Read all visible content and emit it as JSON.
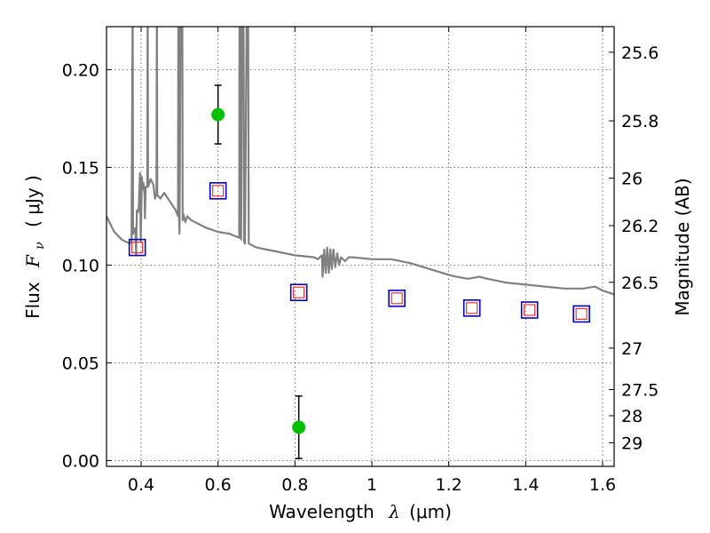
{
  "chart_data": {
    "type": "scatter",
    "title": "",
    "xlabel": "Wavelength  λ (μm)",
    "ylabel": "Flux  F_ν  ( μJy )",
    "ylabel_parts": {
      "prefix": "Flux",
      "symbol": "F",
      "subscript": "ν",
      "unit": "( μJy )"
    },
    "xlabel_parts": {
      "prefix": "Wavelength",
      "symbol": "λ",
      "unit": "(μm)"
    },
    "y2label": "Magnitude (AB)",
    "xlim": [
      0.31,
      1.63
    ],
    "ylim": [
      -0.003,
      0.222
    ],
    "grid": true,
    "x_ticks": [
      0.4,
      0.6,
      0.8,
      1.0,
      1.2,
      1.4,
      1.6
    ],
    "x_tick_labels": [
      "0.4",
      "0.6",
      "0.8",
      "1",
      "1.2",
      "1.4",
      "1.6"
    ],
    "y_ticks": [
      0.0,
      0.05,
      0.1,
      0.15,
      0.2
    ],
    "y_tick_labels": [
      "0.00",
      "0.05",
      "0.10",
      "0.15",
      "0.20"
    ],
    "y2_ticks": [
      {
        "flux": 0.2089,
        "label": "25.6"
      },
      {
        "flux": 0.1738,
        "label": "25.8"
      },
      {
        "flux": 0.1445,
        "label": "26"
      },
      {
        "flux": 0.1202,
        "label": "26.2"
      },
      {
        "flux": 0.0912,
        "label": "26.5"
      },
      {
        "flux": 0.0575,
        "label": "27"
      },
      {
        "flux": 0.0363,
        "label": "27.5"
      },
      {
        "flux": 0.0229,
        "label": "28"
      },
      {
        "flux": 0.0091,
        "label": "29"
      }
    ],
    "series": [
      {
        "name": "Observed photometry",
        "marker": "circle",
        "color": "#00c000",
        "points": [
          {
            "x": 0.6,
            "y": 0.177,
            "yerr": 0.015
          },
          {
            "x": 0.81,
            "y": 0.017,
            "yerr": 0.016
          }
        ]
      },
      {
        "name": "Model photometry (blue)",
        "marker": "square",
        "color": "#0000cc",
        "points": [
          {
            "x": 0.39,
            "y": 0.109
          },
          {
            "x": 0.6,
            "y": 0.138
          },
          {
            "x": 0.81,
            "y": 0.086
          },
          {
            "x": 1.065,
            "y": 0.083
          },
          {
            "x": 1.26,
            "y": 0.078
          },
          {
            "x": 1.41,
            "y": 0.077
          },
          {
            "x": 1.545,
            "y": 0.075
          }
        ]
      },
      {
        "name": "Model photometry (red)",
        "marker": "square",
        "color": "#ee2222",
        "points": [
          {
            "x": 0.39,
            "y": 0.109
          },
          {
            "x": 0.6,
            "y": 0.138
          },
          {
            "x": 0.81,
            "y": 0.086
          },
          {
            "x": 1.065,
            "y": 0.083
          },
          {
            "x": 1.26,
            "y": 0.078
          },
          {
            "x": 1.41,
            "y": 0.077
          },
          {
            "x": 1.545,
            "y": 0.075
          }
        ]
      },
      {
        "name": "Model spectrum",
        "type": "line",
        "color": "#808080",
        "points": [
          [
            0.31,
            0.125
          ],
          [
            0.33,
            0.117
          ],
          [
            0.35,
            0.113
          ],
          [
            0.37,
            0.111
          ],
          [
            0.375,
            0.112
          ],
          [
            0.378,
            0.24
          ],
          [
            0.379,
            0.116
          ],
          [
            0.385,
            0.119
          ],
          [
            0.387,
            0.105
          ],
          [
            0.389,
            0.128
          ],
          [
            0.392,
            0.127
          ],
          [
            0.394,
            0.13
          ],
          [
            0.397,
            0.147
          ],
          [
            0.399,
            0.112
          ],
          [
            0.402,
            0.145
          ],
          [
            0.404,
            0.139
          ],
          [
            0.406,
            0.142
          ],
          [
            0.409,
            0.136
          ],
          [
            0.41,
            0.124
          ],
          [
            0.412,
            0.14
          ],
          [
            0.416,
            0.14
          ],
          [
            0.417,
            0.24
          ],
          [
            0.418,
            0.14
          ],
          [
            0.425,
            0.144
          ],
          [
            0.432,
            0.141
          ],
          [
            0.436,
            0.134
          ],
          [
            0.44,
            0.136
          ],
          [
            0.441,
            0.24
          ],
          [
            0.442,
            0.136
          ],
          [
            0.45,
            0.134
          ],
          [
            0.46,
            0.137
          ],
          [
            0.47,
            0.134
          ],
          [
            0.48,
            0.131
          ],
          [
            0.49,
            0.128
          ],
          [
            0.496,
            0.125
          ],
          [
            0.497,
            0.24
          ],
          [
            0.498,
            0.24
          ],
          [
            0.499,
            0.121
          ],
          [
            0.5,
            0.116
          ],
          [
            0.503,
            0.24
          ],
          [
            0.505,
            0.24
          ],
          [
            0.507,
            0.24
          ],
          [
            0.508,
            0.123
          ],
          [
            0.51,
            0.126
          ],
          [
            0.515,
            0.122
          ],
          [
            0.52,
            0.125
          ],
          [
            0.53,
            0.123
          ],
          [
            0.55,
            0.121
          ],
          [
            0.57,
            0.119
          ],
          [
            0.6,
            0.117
          ],
          [
            0.63,
            0.116
          ],
          [
            0.655,
            0.114
          ],
          [
            0.656,
            0.24
          ],
          [
            0.658,
            0.24
          ],
          [
            0.66,
            0.113
          ],
          [
            0.663,
            0.24
          ],
          [
            0.666,
            0.24
          ],
          [
            0.668,
            0.112
          ],
          [
            0.67,
            0.111
          ],
          [
            0.675,
            0.24
          ],
          [
            0.678,
            0.24
          ],
          [
            0.68,
            0.111
          ],
          [
            0.7,
            0.109
          ],
          [
            0.75,
            0.107
          ],
          [
            0.8,
            0.105
          ],
          [
            0.85,
            0.104
          ],
          [
            0.86,
            0.103
          ],
          [
            0.87,
            0.105
          ],
          [
            0.872,
            0.094
          ],
          [
            0.876,
            0.108
          ],
          [
            0.88,
            0.096
          ],
          [
            0.884,
            0.109
          ],
          [
            0.888,
            0.096
          ],
          [
            0.892,
            0.108
          ],
          [
            0.896,
            0.098
          ],
          [
            0.9,
            0.108
          ],
          [
            0.905,
            0.099
          ],
          [
            0.91,
            0.106
          ],
          [
            0.915,
            0.1
          ],
          [
            0.92,
            0.104
          ],
          [
            0.93,
            0.102
          ],
          [
            0.94,
            0.104
          ],
          [
            0.95,
            0.104
          ],
          [
            1.0,
            0.103
          ],
          [
            1.05,
            0.103
          ],
          [
            1.1,
            0.101
          ],
          [
            1.15,
            0.098
          ],
          [
            1.2,
            0.095
          ],
          [
            1.22,
            0.094
          ],
          [
            1.25,
            0.093
          ],
          [
            1.28,
            0.094
          ],
          [
            1.3,
            0.093
          ],
          [
            1.35,
            0.091
          ],
          [
            1.4,
            0.09
          ],
          [
            1.45,
            0.089
          ],
          [
            1.5,
            0.088
          ],
          [
            1.55,
            0.088
          ],
          [
            1.58,
            0.089
          ],
          [
            1.6,
            0.087
          ],
          [
            1.63,
            0.085
          ]
        ]
      }
    ]
  }
}
